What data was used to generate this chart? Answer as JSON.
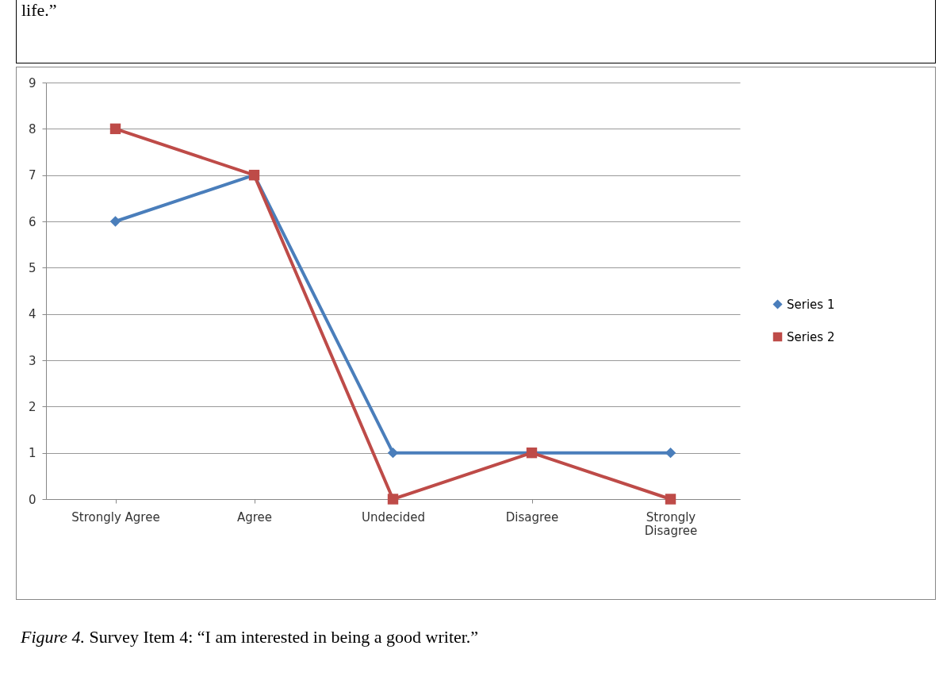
{
  "chart_data": {
    "type": "line",
    "categories": [
      "Strongly Agree",
      "Agree",
      "Undecided",
      "Disagree",
      "Strongly Disagree"
    ],
    "series": [
      {
        "name": "Series 1",
        "color": "#4a7ebb",
        "marker": "diamond",
        "values": [
          6,
          7,
          1,
          1,
          1
        ]
      },
      {
        "name": "Series 2",
        "color": "#be4b48",
        "marker": "square",
        "values": [
          8,
          7,
          0,
          1,
          0
        ]
      }
    ],
    "ylim": [
      0,
      9
    ],
    "yticks": [
      0,
      1,
      2,
      3,
      4,
      5,
      6,
      7,
      8,
      9
    ],
    "grid": "y",
    "legend": "right",
    "line_style": "solid",
    "annotations": [
      "life.”",
      "Figure 4. Survey Item 4: “I am interested in being a good writer.”"
    ]
  }
}
